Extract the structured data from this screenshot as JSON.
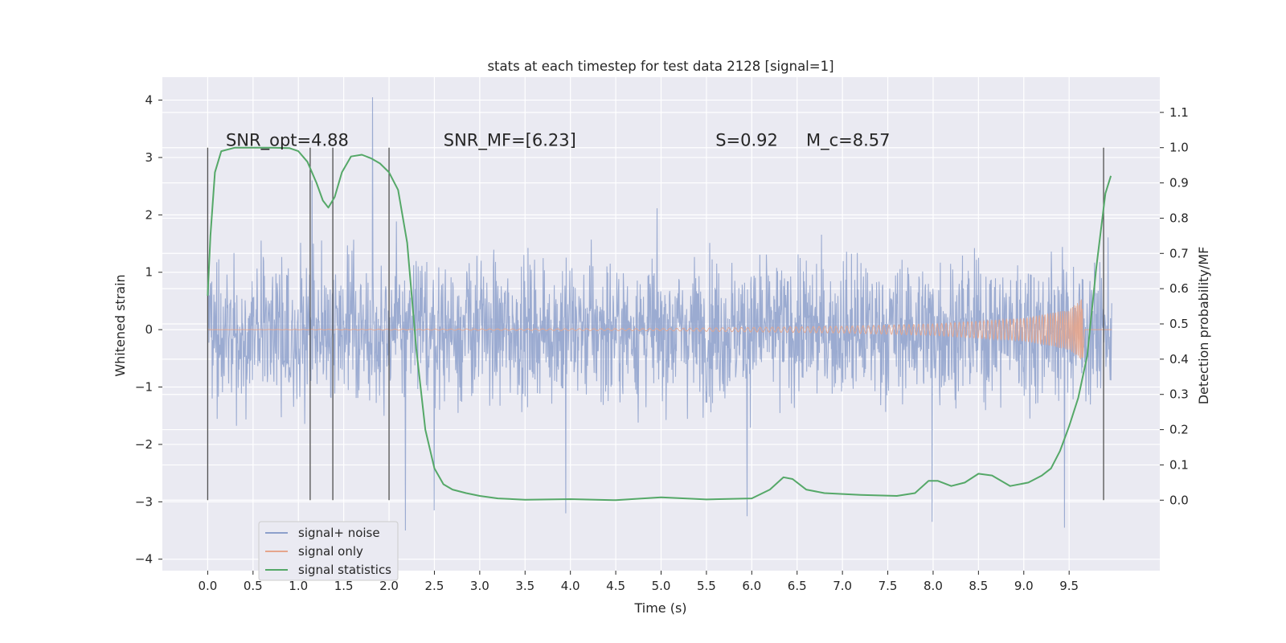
{
  "chart_data": {
    "type": "line",
    "title": "stats at each timestep for test data 2128 [signal=1]",
    "xlabel": "Time (s)",
    "ylabel_left": "Whitened strain",
    "ylabel_right": "Detection probability/MF",
    "xlim": [
      -0.5,
      10.5
    ],
    "ylim_left": [
      -4.2,
      4.4
    ],
    "ylim_right": [
      -0.2,
      1.2
    ],
    "x_ticks": [
      "0.0",
      "0.5",
      "1.0",
      "1.5",
      "2.0",
      "2.5",
      "3.0",
      "3.5",
      "4.0",
      "4.5",
      "5.0",
      "5.5",
      "6.0",
      "6.5",
      "7.0",
      "7.5",
      "8.0",
      "8.5",
      "9.0",
      "9.5"
    ],
    "x_tick_values": [
      0.0,
      0.5,
      1.0,
      1.5,
      2.0,
      2.5,
      3.0,
      3.5,
      4.0,
      4.5,
      5.0,
      5.5,
      6.0,
      6.5,
      7.0,
      7.5,
      8.0,
      8.5,
      9.0,
      9.5
    ],
    "y_left_ticks": [
      "−4",
      "−3",
      "−2",
      "−1",
      "0",
      "1",
      "2",
      "3",
      "4"
    ],
    "y_left_tick_values": [
      -4,
      -3,
      -2,
      -1,
      0,
      1,
      2,
      3,
      4
    ],
    "y_right_ticks": [
      "0.0",
      "0.1",
      "0.2",
      "0.3",
      "0.4",
      "0.5",
      "0.6",
      "0.7",
      "0.8",
      "0.9",
      "1.0",
      "1.1"
    ],
    "y_right_tick_values": [
      0.0,
      0.1,
      0.2,
      0.3,
      0.4,
      0.5,
      0.6,
      0.7,
      0.8,
      0.9,
      1.0,
      1.1
    ],
    "grid": true,
    "legend_position": "lower-left",
    "annotations": [
      {
        "x": 0.2,
        "text": "SNR_opt=4.88"
      },
      {
        "x": 2.6,
        "text": "SNR_MF=[6.23]"
      },
      {
        "x": 5.6,
        "text": "S=0.92"
      },
      {
        "x": 6.6,
        "text": "M_c=8.57"
      }
    ],
    "vertical_markers": [
      0.0,
      1.13,
      1.38,
      2.0,
      9.88
    ],
    "series": [
      {
        "name": "signal+ noise",
        "axis": "left",
        "color": "#8da0cb",
        "style": "noise band, approx. range −2.5 to +3.0 with spikes to 4.05 at t≈1.82",
        "x": [
          0.0,
          1.82,
          1.15,
          2.18,
          2.5,
          3.95,
          5.95,
          7.99,
          9.45
        ],
        "values": [
          0.0,
          4.05,
          2.6,
          -3.5,
          -3.15,
          -3.2,
          -3.25,
          -3.35,
          -3.45
        ]
      },
      {
        "name": "signal only",
        "axis": "left",
        "color": "#e5a58c",
        "style": "chirp with amplitude growing toward the merger",
        "x": [
          0.0,
          5.0,
          7.0,
          8.0,
          9.0,
          9.5,
          9.65,
          9.67
        ],
        "values": [
          0.0,
          0.02,
          0.06,
          0.1,
          0.2,
          0.35,
          0.55,
          0.0
        ]
      },
      {
        "name": "signal statistics",
        "axis": "right",
        "color": "#55a868",
        "x": [
          0.0,
          0.03,
          0.08,
          0.15,
          0.3,
          0.5,
          0.7,
          0.9,
          1.0,
          1.1,
          1.2,
          1.27,
          1.33,
          1.4,
          1.48,
          1.58,
          1.7,
          1.8,
          1.9,
          2.0,
          2.1,
          2.2,
          2.3,
          2.4,
          2.5,
          2.6,
          2.7,
          2.85,
          3.0,
          3.2,
          3.5,
          4.0,
          4.5,
          5.0,
          5.5,
          6.0,
          6.2,
          6.35,
          6.45,
          6.6,
          6.8,
          7.2,
          7.6,
          7.8,
          7.95,
          8.05,
          8.2,
          8.35,
          8.5,
          8.65,
          8.85,
          9.05,
          9.2,
          9.3,
          9.4,
          9.5,
          9.6,
          9.7,
          9.8,
          9.9,
          9.96
        ],
        "values": [
          0.58,
          0.75,
          0.93,
          0.99,
          1.0,
          1.0,
          1.0,
          0.999,
          0.99,
          0.96,
          0.9,
          0.85,
          0.83,
          0.86,
          0.93,
          0.975,
          0.98,
          0.97,
          0.955,
          0.93,
          0.88,
          0.73,
          0.43,
          0.2,
          0.09,
          0.045,
          0.03,
          0.02,
          0.012,
          0.005,
          0.001,
          0.003,
          0.0,
          0.008,
          0.002,
          0.005,
          0.03,
          0.065,
          0.06,
          0.03,
          0.02,
          0.015,
          0.012,
          0.02,
          0.055,
          0.055,
          0.04,
          0.05,
          0.075,
          0.07,
          0.04,
          0.05,
          0.07,
          0.09,
          0.14,
          0.21,
          0.29,
          0.41,
          0.66,
          0.87,
          0.92
        ]
      }
    ]
  }
}
